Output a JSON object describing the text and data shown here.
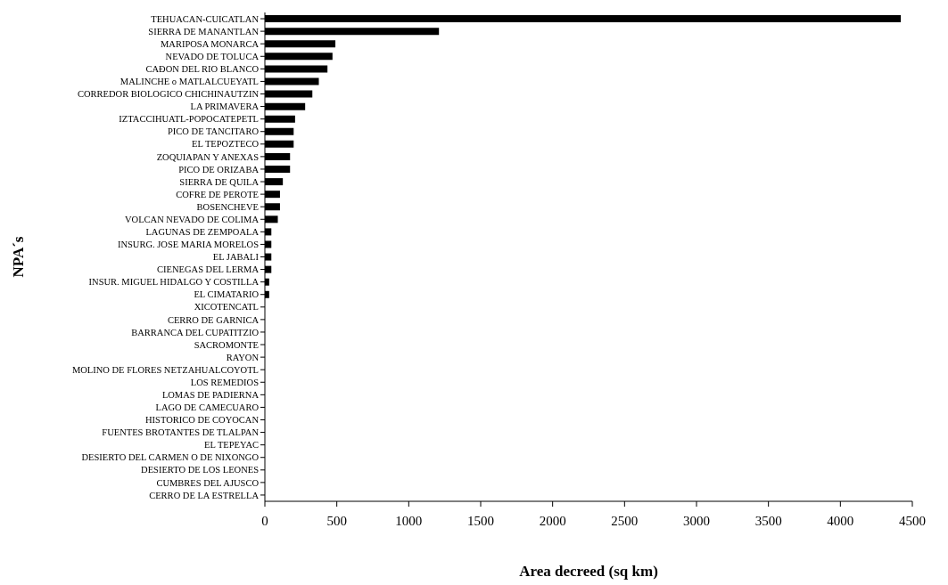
{
  "chart_data": {
    "type": "bar",
    "orientation": "horizontal",
    "xlabel": "Area decreed (sq km)",
    "ylabel": "NPA´s",
    "categories": [
      "TEHUACAN-CUICATLAN",
      "SIERRA DE MANANTLAN",
      "MARIPOSA MONARCA",
      "NEVADO DE TOLUCA",
      "CAÐON DEL RIO BLANCO",
      "MALINCHE o MATLALCUEYATL",
      "CORREDOR BIOLOGICO CHICHINAUTZIN",
      "LA PRIMAVERA",
      "IZTACCIHUATL-POPOCATEPETL",
      "PICO DE TANCITARO",
      "EL TEPOZTECO",
      "ZOQUIAPAN Y ANEXAS",
      "PICO DE ORIZABA",
      "SIERRA DE QUILA",
      "COFRE DE PEROTE",
      "BOSENCHEVE",
      "VOLCAN NEVADO DE COLIMA",
      "LAGUNAS DE ZEMPOALA",
      "INSURG. JOSE MARIA MORELOS",
      "EL JABALI",
      "CIENEGAS DEL LERMA",
      "INSUR. MIGUEL HIDALGO Y COSTILLA",
      "EL CIMATARIO",
      "XICOTENCATL",
      "CERRO DE GARNICA",
      "BARRANCA DEL CUPATITZIO",
      "SACROMONTE",
      "RAYON",
      "MOLINO DE FLORES NETZAHUALCOYOTL",
      "LOS REMEDIOS",
      "LOMAS DE PADIERNA",
      "LAGO DE CAMECUARO",
      "HISTORICO DE COYOCAN",
      "FUENTES BROTANTES DE TLALPAN",
      "EL TEPEYAC",
      "DESIERTO DEL CARMEN O DE NIXONGO",
      "DESIERTO DE LOS LEONES",
      "CUMBRES DEL AJUSCO",
      "CERRO DE LA ESTRELLA"
    ],
    "values": [
      4420,
      1210,
      490,
      470,
      435,
      375,
      330,
      280,
      210,
      200,
      200,
      175,
      175,
      125,
      105,
      105,
      90,
      45,
      45,
      45,
      45,
      30,
      30,
      0,
      0,
      0,
      0,
      0,
      0,
      0,
      0,
      0,
      0,
      0,
      0,
      0,
      0,
      0,
      0
    ],
    "color": "#000000",
    "xlim": [
      0,
      4500
    ],
    "xticks": [
      0,
      500,
      1000,
      1500,
      2000,
      2500,
      3000,
      3500,
      4000,
      4500
    ]
  }
}
